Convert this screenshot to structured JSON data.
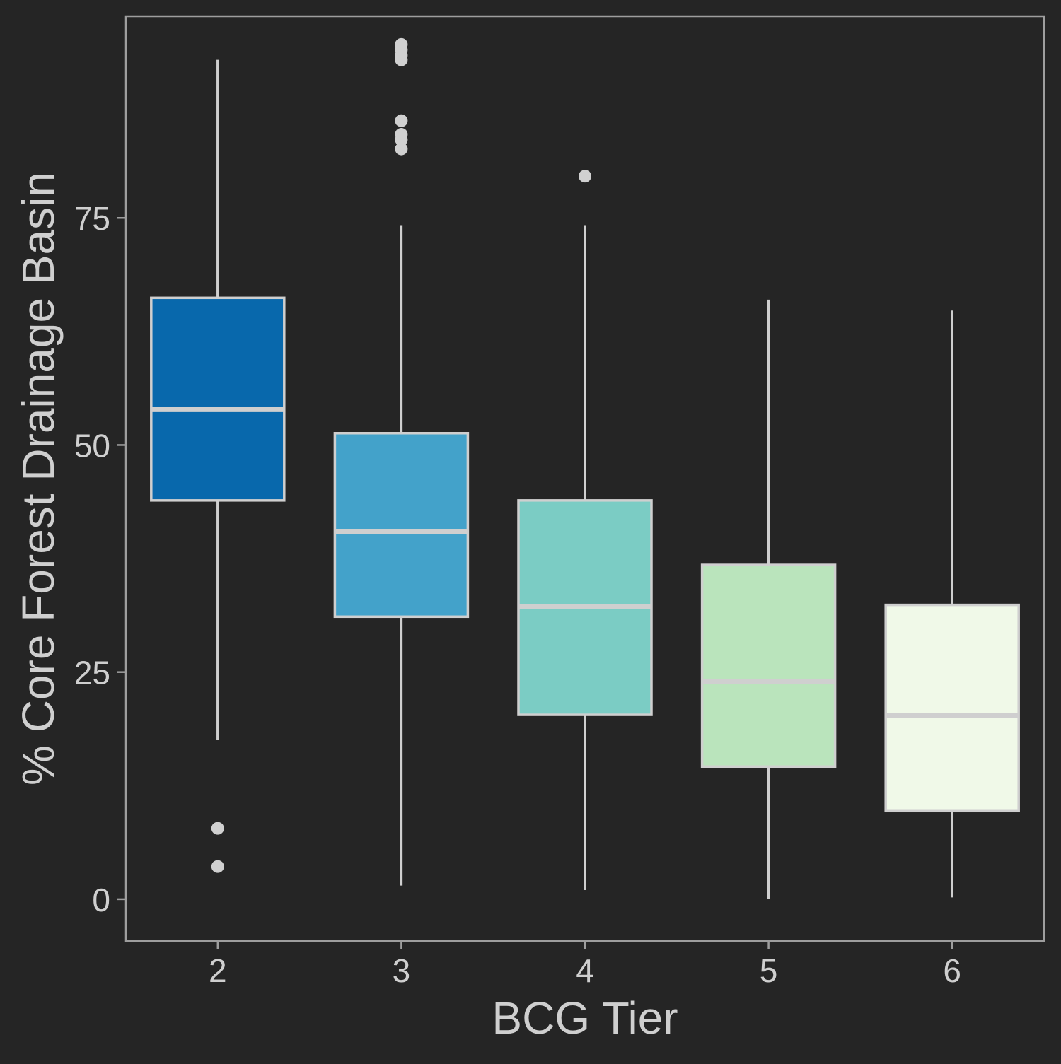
{
  "chart_data": {
    "type": "boxplot",
    "title": "",
    "xlabel": "BCG Tier",
    "ylabel": "% Core Forest Drainage Basin",
    "categories": [
      "2",
      "3",
      "4",
      "5",
      "6"
    ],
    "ylim": [
      -4.6,
      97.2
    ],
    "yticks": [
      0,
      25,
      50,
      75
    ],
    "ytick_labels": [
      "0",
      "25",
      "50",
      "75"
    ],
    "grid": false,
    "legend": "none",
    "colors": {
      "background": "#252525",
      "panel_border": "#9e9e9e",
      "whisker": "#cfcfcf",
      "median": "#cfcfcf",
      "box_border": "#cfcfcf",
      "outlier": "#d0d0d0",
      "text": "#cfcfcf"
    },
    "boxes": [
      {
        "category": "2",
        "fill": "#0868ac",
        "whisker_low": 17.5,
        "q1": 43.9,
        "median": 53.9,
        "q3": 66.2,
        "whisker_high": 92.4,
        "outliers": [
          7.8,
          3.6
        ]
      },
      {
        "category": "3",
        "fill": "#43a2ca",
        "whisker_low": 1.5,
        "q1": 31.1,
        "median": 40.5,
        "q3": 51.3,
        "whisker_high": 74.2,
        "outliers": [
          94.1,
          93.5,
          92.9,
          92.4,
          85.7,
          84.2,
          83.6,
          82.6
        ]
      },
      {
        "category": "4",
        "fill": "#7bccc4",
        "whisker_low": 1.0,
        "q1": 20.3,
        "median": 32.2,
        "q3": 43.9,
        "whisker_high": 74.2,
        "outliers": [
          79.6
        ]
      },
      {
        "category": "5",
        "fill": "#bae4bc",
        "whisker_low": 0.0,
        "q1": 14.6,
        "median": 24.0,
        "q3": 36.8,
        "whisker_high": 66.0,
        "outliers": []
      },
      {
        "category": "6",
        "fill": "#f0f9e8",
        "whisker_low": 0.2,
        "q1": 9.7,
        "median": 20.2,
        "q3": 32.4,
        "whisker_high": 64.8,
        "outliers": []
      }
    ]
  }
}
